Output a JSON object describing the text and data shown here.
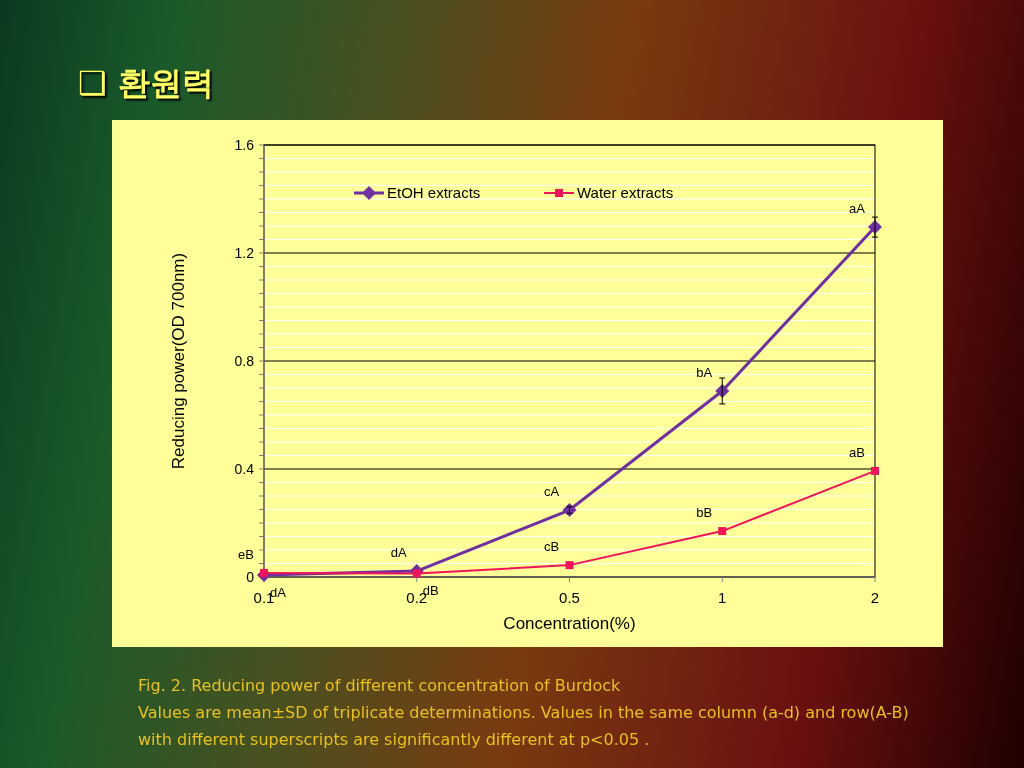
{
  "chart_data": {
    "type": "line",
    "title": "❑ 환원력",
    "xlabel": "Concentration(%)",
    "ylabel": "Reducing power(OD 700nm)",
    "categories": [
      "0.1",
      "0.2",
      "0.5",
      "1",
      "2"
    ],
    "series": [
      {
        "name": "EtOH extracts",
        "color": "#7030a0",
        "marker": "diamond",
        "values": [
          0.007,
          0.022,
          0.248,
          0.689,
          1.296
        ],
        "errors": [
          null,
          null,
          0.012,
          0.048,
          0.037
        ]
      },
      {
        "name": "Water extracts",
        "color": "#f0145a",
        "marker": "square",
        "values": [
          0.015,
          0.013,
          0.044,
          0.17,
          0.393
        ]
      }
    ],
    "ylim": [
      0,
      1.6
    ],
    "yticks": [
      0,
      {
        "value": 0.05,
        "label": null
      },
      {
        "value": 0.1,
        "label": null
      },
      {
        "value": 0.15,
        "label": null
      },
      {
        "value": 0.2,
        "label": null
      },
      {
        "value": 0.25,
        "label": null
      },
      {
        "value": 0.3,
        "label": null
      },
      {
        "value": 0.35,
        "label": null
      },
      0.4,
      {
        "value": 0.45,
        "label": null
      },
      {
        "value": 0.5,
        "label": null
      },
      {
        "value": 0.55,
        "label": null
      },
      {
        "value": 0.6,
        "label": null
      },
      {
        "value": 0.65,
        "label": null
      },
      {
        "value": 0.7,
        "label": null
      },
      {
        "value": 0.75,
        "label": null
      },
      0.8,
      {
        "value": 0.85,
        "label": null
      },
      {
        "value": 0.9,
        "label": null
      },
      {
        "value": 0.95,
        "label": null
      },
      {
        "value": 1.0,
        "label": null
      },
      {
        "value": 1.05,
        "label": null
      },
      {
        "value": 1.1,
        "label": null
      },
      {
        "value": 1.15,
        "label": null
      },
      1.2,
      {
        "value": 1.25,
        "label": null
      },
      {
        "value": 1.3,
        "label": null
      },
      {
        "value": 1.35,
        "label": null
      },
      {
        "value": 1.4,
        "label": null
      },
      {
        "value": 1.45,
        "label": null
      },
      {
        "value": 1.5,
        "label": null
      },
      {
        "value": 1.55,
        "label": null
      },
      1.6
    ],
    "grid": "y",
    "legend": "top",
    "annotations": [
      {
        "text": "eB",
        "x": "0.1",
        "y": 0.015
      },
      {
        "text": "dA",
        "x": "0.1",
        "y": 0.007
      },
      {
        "text": "dA",
        "x": "0.2",
        "y": 0.022
      },
      {
        "text": "dB",
        "x": "0.2",
        "y": 0.013
      },
      {
        "text": "cA",
        "x": "0.5",
        "y": 0.248
      },
      {
        "text": "cB",
        "x": "0.5",
        "y": 0.044
      },
      {
        "text": "bA",
        "x": "1",
        "y": 0.689
      },
      {
        "text": "bB",
        "x": "1",
        "y": 0.17
      },
      {
        "text": "aA",
        "x": "2",
        "y": 1.296
      },
      {
        "text": "aB",
        "x": "2",
        "y": 0.393
      },
      "Fig. 2. Reducing power of different concentration  of Burdock",
      "Values are mean±SD of triplicate determinations. Values in the same column (a-d) and row(A-B) with different superscripts are significantly different at p<0.05 ."
    ]
  }
}
